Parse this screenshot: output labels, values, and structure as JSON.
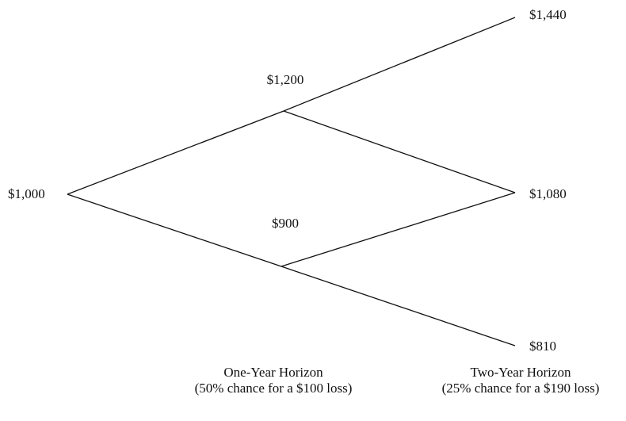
{
  "nodes": [
    {
      "label": "$1,000"
    },
    {
      "label": "$1,200"
    },
    {
      "label": "$900"
    },
    {
      "label": "$1,440"
    },
    {
      "label": "$1,080"
    },
    {
      "label": "$810"
    }
  ],
  "horizons": [
    {
      "title": "One-Year Horizon",
      "subtitle": "(50% chance for a $100 loss)"
    },
    {
      "title": "Two-Year Horizon",
      "subtitle": "(25% chance for a $190 loss)"
    }
  ]
}
